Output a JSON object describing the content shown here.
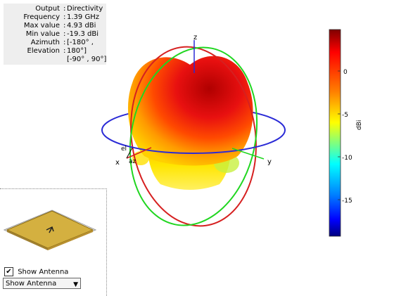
{
  "info": {
    "rows": [
      {
        "label": "Output",
        "value": "Directivity"
      },
      {
        "label": "Frequency",
        "value": "1.39 GHz"
      },
      {
        "label": "Max value",
        "value": "4.93 dBi"
      },
      {
        "label": "Min value",
        "value": "-19.3 dBi"
      },
      {
        "label": "Azimuth",
        "value": "[-180° ,"
      },
      {
        "label": "Elevation",
        "value": "180°]"
      },
      {
        "label": "",
        "value": "[-90° , 90°]"
      }
    ]
  },
  "axes": {
    "z": "z",
    "x": "x",
    "y": "y",
    "el": "el",
    "az": "az"
  },
  "colorbar": {
    "unit": "dBi",
    "ticks": [
      "0",
      "-5",
      "-10",
      "-15"
    ],
    "colors": [
      "#7f0000",
      "#ff0000",
      "#ff7f00",
      "#ffff00",
      "#7fff7f",
      "#00ffff",
      "#007fff",
      "#0000ff",
      "#00007f"
    ]
  },
  "colors": {
    "azimuth_circle": "#2a2ad6",
    "elevation_circle_red": "#d62020",
    "elevation_circle_green": "#20d620",
    "antenna_patch": "#d4b040"
  },
  "controls": {
    "show_antenna_label": "Show Antenna",
    "show_antenna_checked": "✔",
    "dropdown_value": "Show Antenna",
    "dropdown_arrow": "▼"
  }
}
